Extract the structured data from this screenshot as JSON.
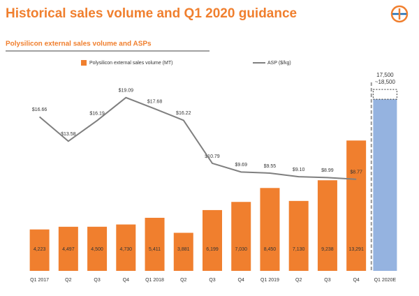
{
  "chart_data": {
    "type": "bar_line",
    "title": "Historical sales volume and Q1 2020 guidance",
    "subtitle": "Polysilicon external sales volume and ASPs",
    "categories": [
      "Q1 2017",
      "Q2",
      "Q3",
      "Q4",
      "Q1 2018",
      "Q2",
      "Q3",
      "Q4",
      "Q1 2019",
      "Q2",
      "Q3",
      "Q4",
      "Q1 2020E"
    ],
    "series": [
      {
        "name": "Polysilicon external sales volume (MT)",
        "color": "#f07f2e",
        "values": [
          4223,
          4497,
          4500,
          4730,
          5411,
          3881,
          6199,
          7030,
          8450,
          7130,
          9238,
          13291,
          null
        ],
        "value_labels": [
          "4,223",
          "4,497",
          "4,500",
          "4,730",
          "5,411",
          "3,881",
          "6,199",
          "7,030",
          "8,450",
          "7,130",
          "9,238",
          "13,291",
          null
        ]
      },
      {
        "name": "ASP ($/kg)",
        "color": "#7f7f7f",
        "axis": "y2",
        "values": [
          16.66,
          13.58,
          16.19,
          19.09,
          17.68,
          16.22,
          10.79,
          9.69,
          9.55,
          9.1,
          8.99,
          8.77,
          null
        ],
        "value_labels": [
          "$16.66",
          "$13.58",
          "$16.19",
          "$19.09",
          "$17.68",
          "$16.22",
          "$10.79",
          "$9.69",
          "$9.55",
          "$9.10",
          "$8.99",
          "$8.77",
          null
        ]
      }
    ],
    "guidance": {
      "color": "#95b3e0",
      "low": 17500,
      "high": 18500,
      "labels": [
        "17,500",
        "~18,500"
      ]
    },
    "ylim": [
      0,
      20500
    ],
    "y2lim": [
      -2.8,
      22.6
    ]
  }
}
